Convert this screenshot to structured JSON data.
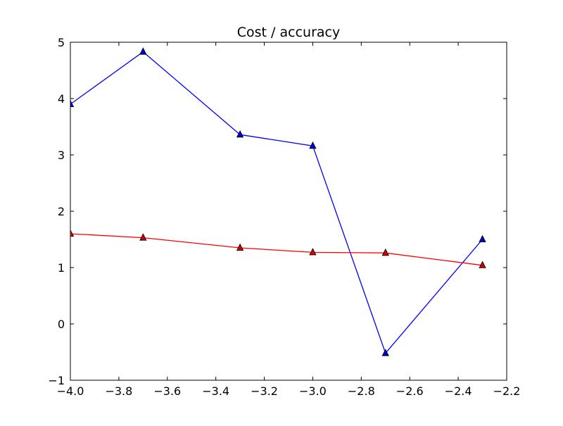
{
  "chart_data": {
    "type": "line",
    "title": "Cost / accuracy",
    "xlabel": "",
    "ylabel": "",
    "xlim": [
      -4.0,
      -2.2
    ],
    "ylim": [
      -1,
      5
    ],
    "x_ticks": [
      -4.0,
      -3.8,
      -3.6,
      -3.4,
      -3.2,
      -3.0,
      -2.8,
      -2.6,
      -2.4,
      -2.2
    ],
    "x_tick_labels": [
      "−4.0",
      "−3.8",
      "−3.6",
      "−3.4",
      "−3.2",
      "−3.0",
      "−2.8",
      "−2.6",
      "−2.4",
      "−2.2"
    ],
    "y_ticks": [
      -1,
      0,
      1,
      2,
      3,
      4,
      5
    ],
    "y_tick_labels": [
      "−1",
      "0",
      "1",
      "2",
      "3",
      "4",
      "5"
    ],
    "grid": false,
    "legend": "none",
    "x": [
      -4.0,
      -3.7,
      -3.3,
      -3.0,
      -2.7,
      -2.3
    ],
    "series": [
      {
        "color": "#0000ff",
        "marker_color": "#0000cc",
        "marker": "triangle",
        "values": [
          3.9,
          4.83,
          3.36,
          3.16,
          -0.52,
          1.5
        ]
      },
      {
        "color": "#ff0000",
        "marker_color": "#cc0000",
        "marker": "triangle",
        "values": [
          1.6,
          1.53,
          1.35,
          1.27,
          1.26,
          1.04
        ]
      }
    ]
  }
}
